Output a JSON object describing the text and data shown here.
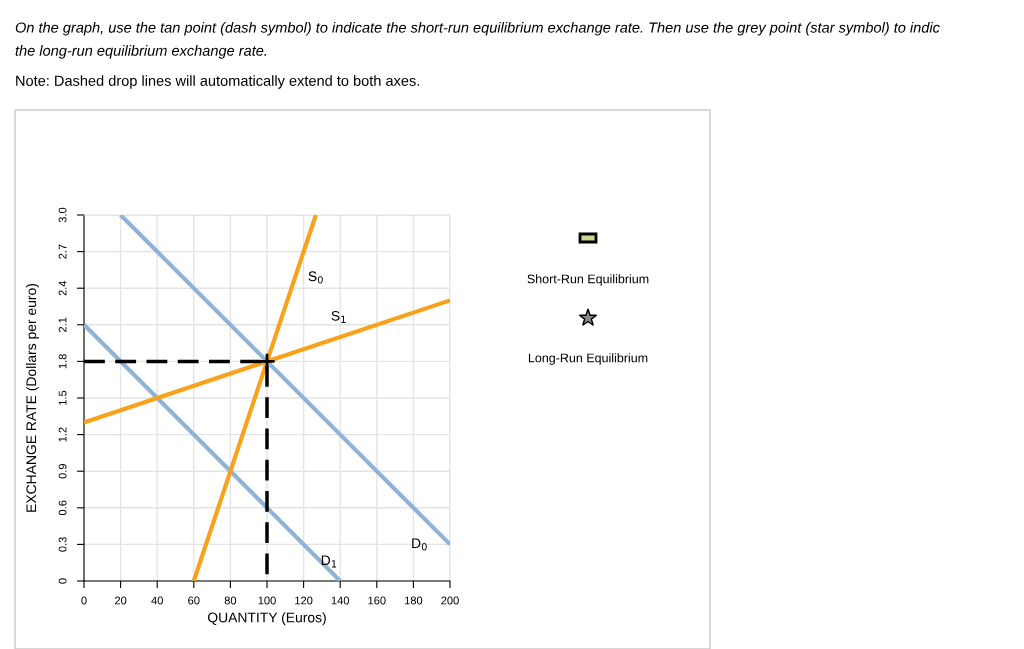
{
  "chart_data": {
    "type": "line",
    "annotations": [
      "On the graph, use the tan point (dash symbol) to indicate the short-run equilibrium exchange rate. Then use the grey point (star symbol) to indic\nthe long-run equilibrium exchange rate.",
      "Note: Dashed drop lines will automatically extend to both axes.",
      "Short-Run Equilibrium",
      "Long-Run Equilibrium"
    ],
    "xlabel": "QUANTITY (Euros)",
    "ylabel": "EXCHANGE RATE (Dollars per euro)",
    "xlim": [
      0,
      200
    ],
    "ylim": [
      0,
      3.0
    ],
    "xticks": [
      0,
      20,
      40,
      60,
      80,
      100,
      120,
      140,
      160,
      180,
      200
    ],
    "yticks": [
      0,
      0.3,
      0.6,
      0.9,
      1.2,
      1.5,
      1.8,
      2.1,
      2.4,
      2.7,
      {
        "value": 3.0,
        "label": "3.0"
      }
    ],
    "grid": true,
    "series": [
      {
        "name": "D$_{0}$",
        "color": "#8fb3d7",
        "x": [
          20,
          200
        ],
        "values": [
          3.0,
          0.3
        ]
      },
      {
        "name": "D$_{1}$",
        "color": "#8fb3d7",
        "x": [
          0,
          140
        ],
        "values": [
          2.1,
          0
        ]
      },
      {
        "name": "S$_{0}$",
        "color": "#f7a21c",
        "x": [
          60,
          126.7
        ],
        "values": [
          0,
          3.0
        ]
      },
      {
        "name": "S$_{1}$",
        "color": "#f7a21c",
        "x": [
          0,
          200
        ],
        "values": [
          1.3,
          2.3
        ]
      },
      {
        "color": "#000000",
        "line_style": "dashed",
        "x": [
          0,
          100,
          100
        ],
        "values": [
          1.8,
          1.8,
          0
        ]
      },
      {
        "type": "scatter",
        "color": "#000000",
        "marker": "cross",
        "x": [
          100
        ],
        "values": [
          1.8
        ]
      }
    ]
  }
}
